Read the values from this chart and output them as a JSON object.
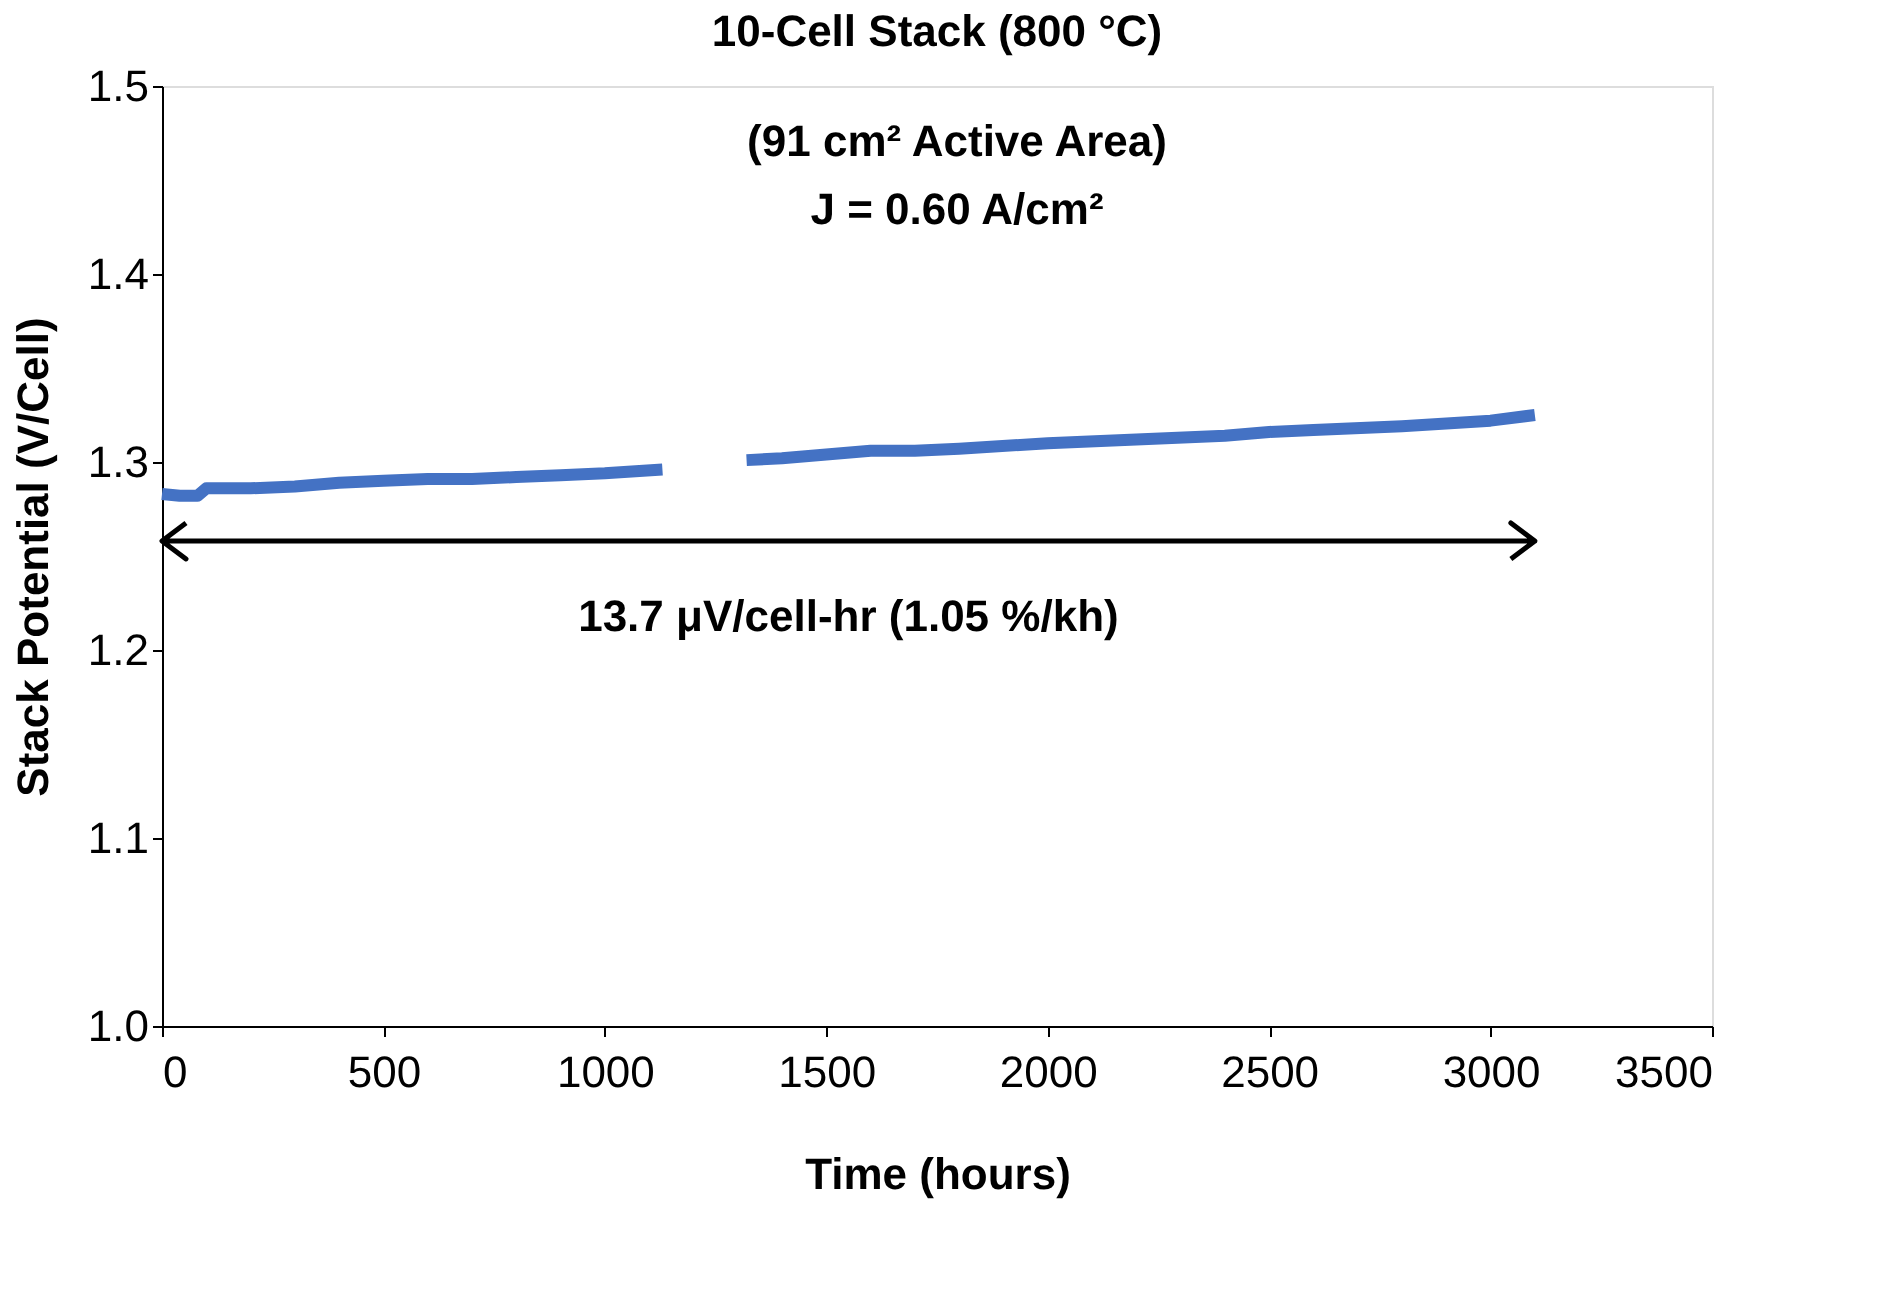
{
  "chart_data": {
    "type": "line",
    "title": "10-Cell Stack (800 °C)",
    "annotations": [
      "(91 cm² Active Area)",
      "J = 0.60 A/cm²"
    ],
    "xlabel": "Time (hours)",
    "ylabel": "Stack Potential (V/Cell)",
    "x": [
      0,
      40,
      80,
      100,
      200,
      300,
      400,
      500,
      600,
      700,
      800,
      900,
      1000,
      1130,
      1200,
      1320,
      1400,
      1500,
      1600,
      1700,
      1800,
      2000,
      2200,
      2400,
      2500,
      2600,
      2800,
      3000,
      3100
    ],
    "series": [
      {
        "color": "#4472c4",
        "values": [
          1.283,
          1.282,
          1.282,
          1.286,
          1.286,
          1.287,
          1.289,
          1.29,
          1.291,
          1.291,
          1.292,
          1.293,
          1.294,
          1.296,
          null,
          1.301,
          1.302,
          1.304,
          1.306,
          1.306,
          1.307,
          1.31,
          1.312,
          1.314,
          1.316,
          1.317,
          1.319,
          1.322,
          1.325
        ]
      }
    ],
    "xlim": [
      0,
      3500
    ],
    "xticks": [
      0,
      500,
      1000,
      1500,
      2000,
      2500,
      3000,
      3500
    ],
    "ylim": [
      1.0,
      1.5
    ],
    "yticks": [
      {
        "value": 1.0,
        "label": "1.0"
      },
      1.1,
      1.2,
      1.3,
      1.4,
      1.5
    ],
    "ref_lines": [
      {
        "axis": "y",
        "value": 1.258,
        "label": "13.7 μV/cell-hr (1.05 %/kh)",
        "color": "#000000"
      }
    ],
    "grid": false,
    "marker": "none",
    "line_style": "solid"
  }
}
